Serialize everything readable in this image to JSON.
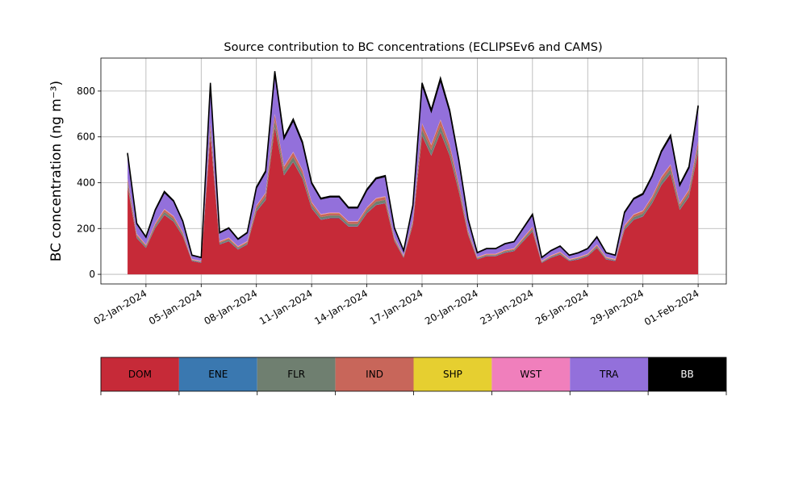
{
  "chart_data": {
    "type": "stacked_area",
    "title": "Source contribution to BC concentrations (ECLIPSEv6 and CAMS)",
    "ylabel": "BC concentration (ng m⁻³)",
    "x": [
      1.0,
      1.5,
      2.0,
      2.5,
      3.0,
      3.5,
      4.0,
      4.5,
      5.0,
      5.5,
      6.0,
      6.5,
      7.0,
      7.5,
      8.0,
      8.5,
      9.0,
      9.5,
      10.0,
      10.5,
      11.0,
      11.5,
      12.0,
      12.5,
      13.0,
      13.5,
      14.0,
      14.5,
      15.0,
      15.5,
      16.0,
      16.5,
      17.0,
      17.5,
      18.0,
      18.5,
      19.0,
      19.5,
      20.0,
      20.5,
      21.0,
      21.5,
      22.0,
      22.5,
      23.0,
      23.5,
      24.0,
      24.5,
      25.0,
      25.5,
      26.0,
      26.5,
      27.0,
      27.5,
      28.0,
      28.5,
      29.0,
      29.5,
      30.0,
      30.5,
      31.0,
      31.5,
      32.0
    ],
    "xlim": [
      -0.45,
      33.53
    ],
    "xticks": [
      {
        "value": 2,
        "label": "02-Jan-2024"
      },
      {
        "value": 5,
        "label": "05-Jan-2024"
      },
      {
        "value": 8,
        "label": "08-Jan-2024"
      },
      {
        "value": 11,
        "label": "11-Jan-2024"
      },
      {
        "value": 14,
        "label": "14-Jan-2024"
      },
      {
        "value": 17,
        "label": "17-Jan-2024"
      },
      {
        "value": 20,
        "label": "20-Jan-2024"
      },
      {
        "value": 23,
        "label": "23-Jan-2024"
      },
      {
        "value": 26,
        "label": "26-Jan-2024"
      },
      {
        "value": 29,
        "label": "29-Jan-2024"
      },
      {
        "value": 32,
        "label": "01-Feb-2024"
      }
    ],
    "ylim": [
      -42,
      944
    ],
    "yticks": [
      0,
      200,
      400,
      600,
      800
    ],
    "grid": true,
    "series": [
      {
        "name": "DOM",
        "color": "#c62a38",
        "values": [
          382,
          158,
          115,
          202,
          259,
          230,
          166,
          58,
          50,
          605,
          130,
          144,
          108,
          130,
          274,
          324,
          641,
          432,
          490,
          418,
          288,
          238,
          245,
          245,
          209,
          209,
          266,
          302,
          310,
          144,
          72,
          216,
          605,
          518,
          619,
          518,
          360,
          173,
          65,
          79,
          79,
          94,
          101,
          144,
          187,
          50,
          72,
          86,
          58,
          65,
          79,
          115,
          65,
          58,
          194,
          238,
          252,
          310,
          389,
          439,
          281,
          338,
          533
        ]
      },
      {
        "name": "ENE",
        "color": "#3a78b0",
        "values": [
          2,
          2,
          2,
          2,
          2,
          2,
          2,
          2,
          2,
          2,
          2,
          2,
          2,
          2,
          2,
          2,
          2,
          2,
          2,
          2,
          2,
          2,
          2,
          2,
          2,
          2,
          2,
          2,
          2,
          2,
          2,
          2,
          2,
          2,
          2,
          2,
          2,
          2,
          2,
          2,
          2,
          2,
          2,
          2,
          2,
          2,
          2,
          2,
          2,
          2,
          2,
          2,
          2,
          2,
          2,
          2,
          2,
          2,
          2,
          2,
          2,
          2,
          2
        ]
      },
      {
        "name": "FLR",
        "color": "#6f7f70",
        "values": [
          16,
          7,
          5,
          8,
          11,
          10,
          7,
          2,
          2,
          25,
          5,
          6,
          5,
          5,
          11,
          14,
          27,
          18,
          20,
          17,
          12,
          10,
          10,
          10,
          9,
          9,
          11,
          13,
          13,
          6,
          3,
          9,
          25,
          22,
          26,
          22,
          15,
          7,
          3,
          3,
          3,
          4,
          4,
          6,
          8,
          2,
          3,
          4,
          2,
          3,
          3,
          5,
          3,
          2,
          8,
          10,
          11,
          13,
          16,
          18,
          12,
          14,
          22
        ]
      },
      {
        "name": "IND",
        "color": "#c8665a",
        "values": [
          16,
          7,
          5,
          8,
          11,
          10,
          7,
          2,
          2,
          25,
          5,
          6,
          5,
          5,
          11,
          14,
          27,
          18,
          20,
          17,
          12,
          10,
          10,
          10,
          9,
          9,
          11,
          13,
          13,
          6,
          3,
          9,
          25,
          22,
          26,
          22,
          15,
          7,
          3,
          3,
          3,
          4,
          4,
          6,
          8,
          2,
          3,
          4,
          2,
          3,
          3,
          5,
          3,
          2,
          8,
          10,
          11,
          13,
          16,
          18,
          12,
          14,
          22
        ]
      },
      {
        "name": "SHP",
        "color": "#e6cf30",
        "values": [
          1,
          1,
          1,
          1,
          1,
          1,
          1,
          1,
          1,
          1,
          1,
          1,
          1,
          1,
          1,
          1,
          1,
          1,
          1,
          1,
          1,
          1,
          1,
          1,
          1,
          1,
          1,
          1,
          1,
          1,
          1,
          1,
          1,
          1,
          1,
          1,
          1,
          1,
          1,
          1,
          1,
          1,
          1,
          1,
          1,
          1,
          1,
          1,
          1,
          1,
          1,
          1,
          1,
          1,
          1,
          1,
          1,
          1,
          1,
          1,
          1,
          1,
          1
        ]
      },
      {
        "name": "WST",
        "color": "#f07fbc",
        "values": [
          2,
          2,
          2,
          2,
          2,
          2,
          2,
          2,
          2,
          2,
          2,
          2,
          2,
          2,
          2,
          2,
          2,
          2,
          2,
          2,
          2,
          2,
          2,
          2,
          2,
          2,
          2,
          2,
          2,
          2,
          2,
          2,
          2,
          2,
          2,
          2,
          2,
          2,
          2,
          2,
          2,
          2,
          2,
          2,
          2,
          2,
          2,
          2,
          2,
          2,
          2,
          2,
          2,
          2,
          2,
          2,
          2,
          2,
          2,
          2,
          2,
          2,
          2
        ]
      },
      {
        "name": "TRA",
        "color": "#9370db",
        "values": [
          106,
          44,
          32,
          56,
          72,
          64,
          46,
          16,
          14,
          168,
          36,
          40,
          30,
          36,
          76,
          90,
          178,
          120,
          136,
          116,
          80,
          66,
          68,
          68,
          58,
          58,
          74,
          84,
          86,
          40,
          20,
          60,
          168,
          144,
          172,
          144,
          100,
          48,
          18,
          22,
          22,
          26,
          28,
          40,
          52,
          14,
          20,
          24,
          16,
          18,
          22,
          32,
          18,
          16,
          54,
          66,
          70,
          86,
          108,
          122,
          78,
          94,
          148
        ]
      },
      {
        "name": "BB",
        "color": "#000000",
        "values": [
          5,
          2,
          2,
          3,
          4,
          3,
          2,
          1,
          1,
          8,
          2,
          2,
          2,
          2,
          4,
          5,
          9,
          6,
          7,
          6,
          4,
          3,
          3,
          3,
          3,
          3,
          4,
          4,
          4,
          2,
          1,
          3,
          8,
          7,
          9,
          7,
          5,
          2,
          1,
          1,
          1,
          1,
          1,
          2,
          3,
          1,
          1,
          1,
          1,
          1,
          1,
          2,
          1,
          1,
          3,
          3,
          4,
          4,
          5,
          6,
          4,
          5,
          7
        ]
      }
    ]
  }
}
